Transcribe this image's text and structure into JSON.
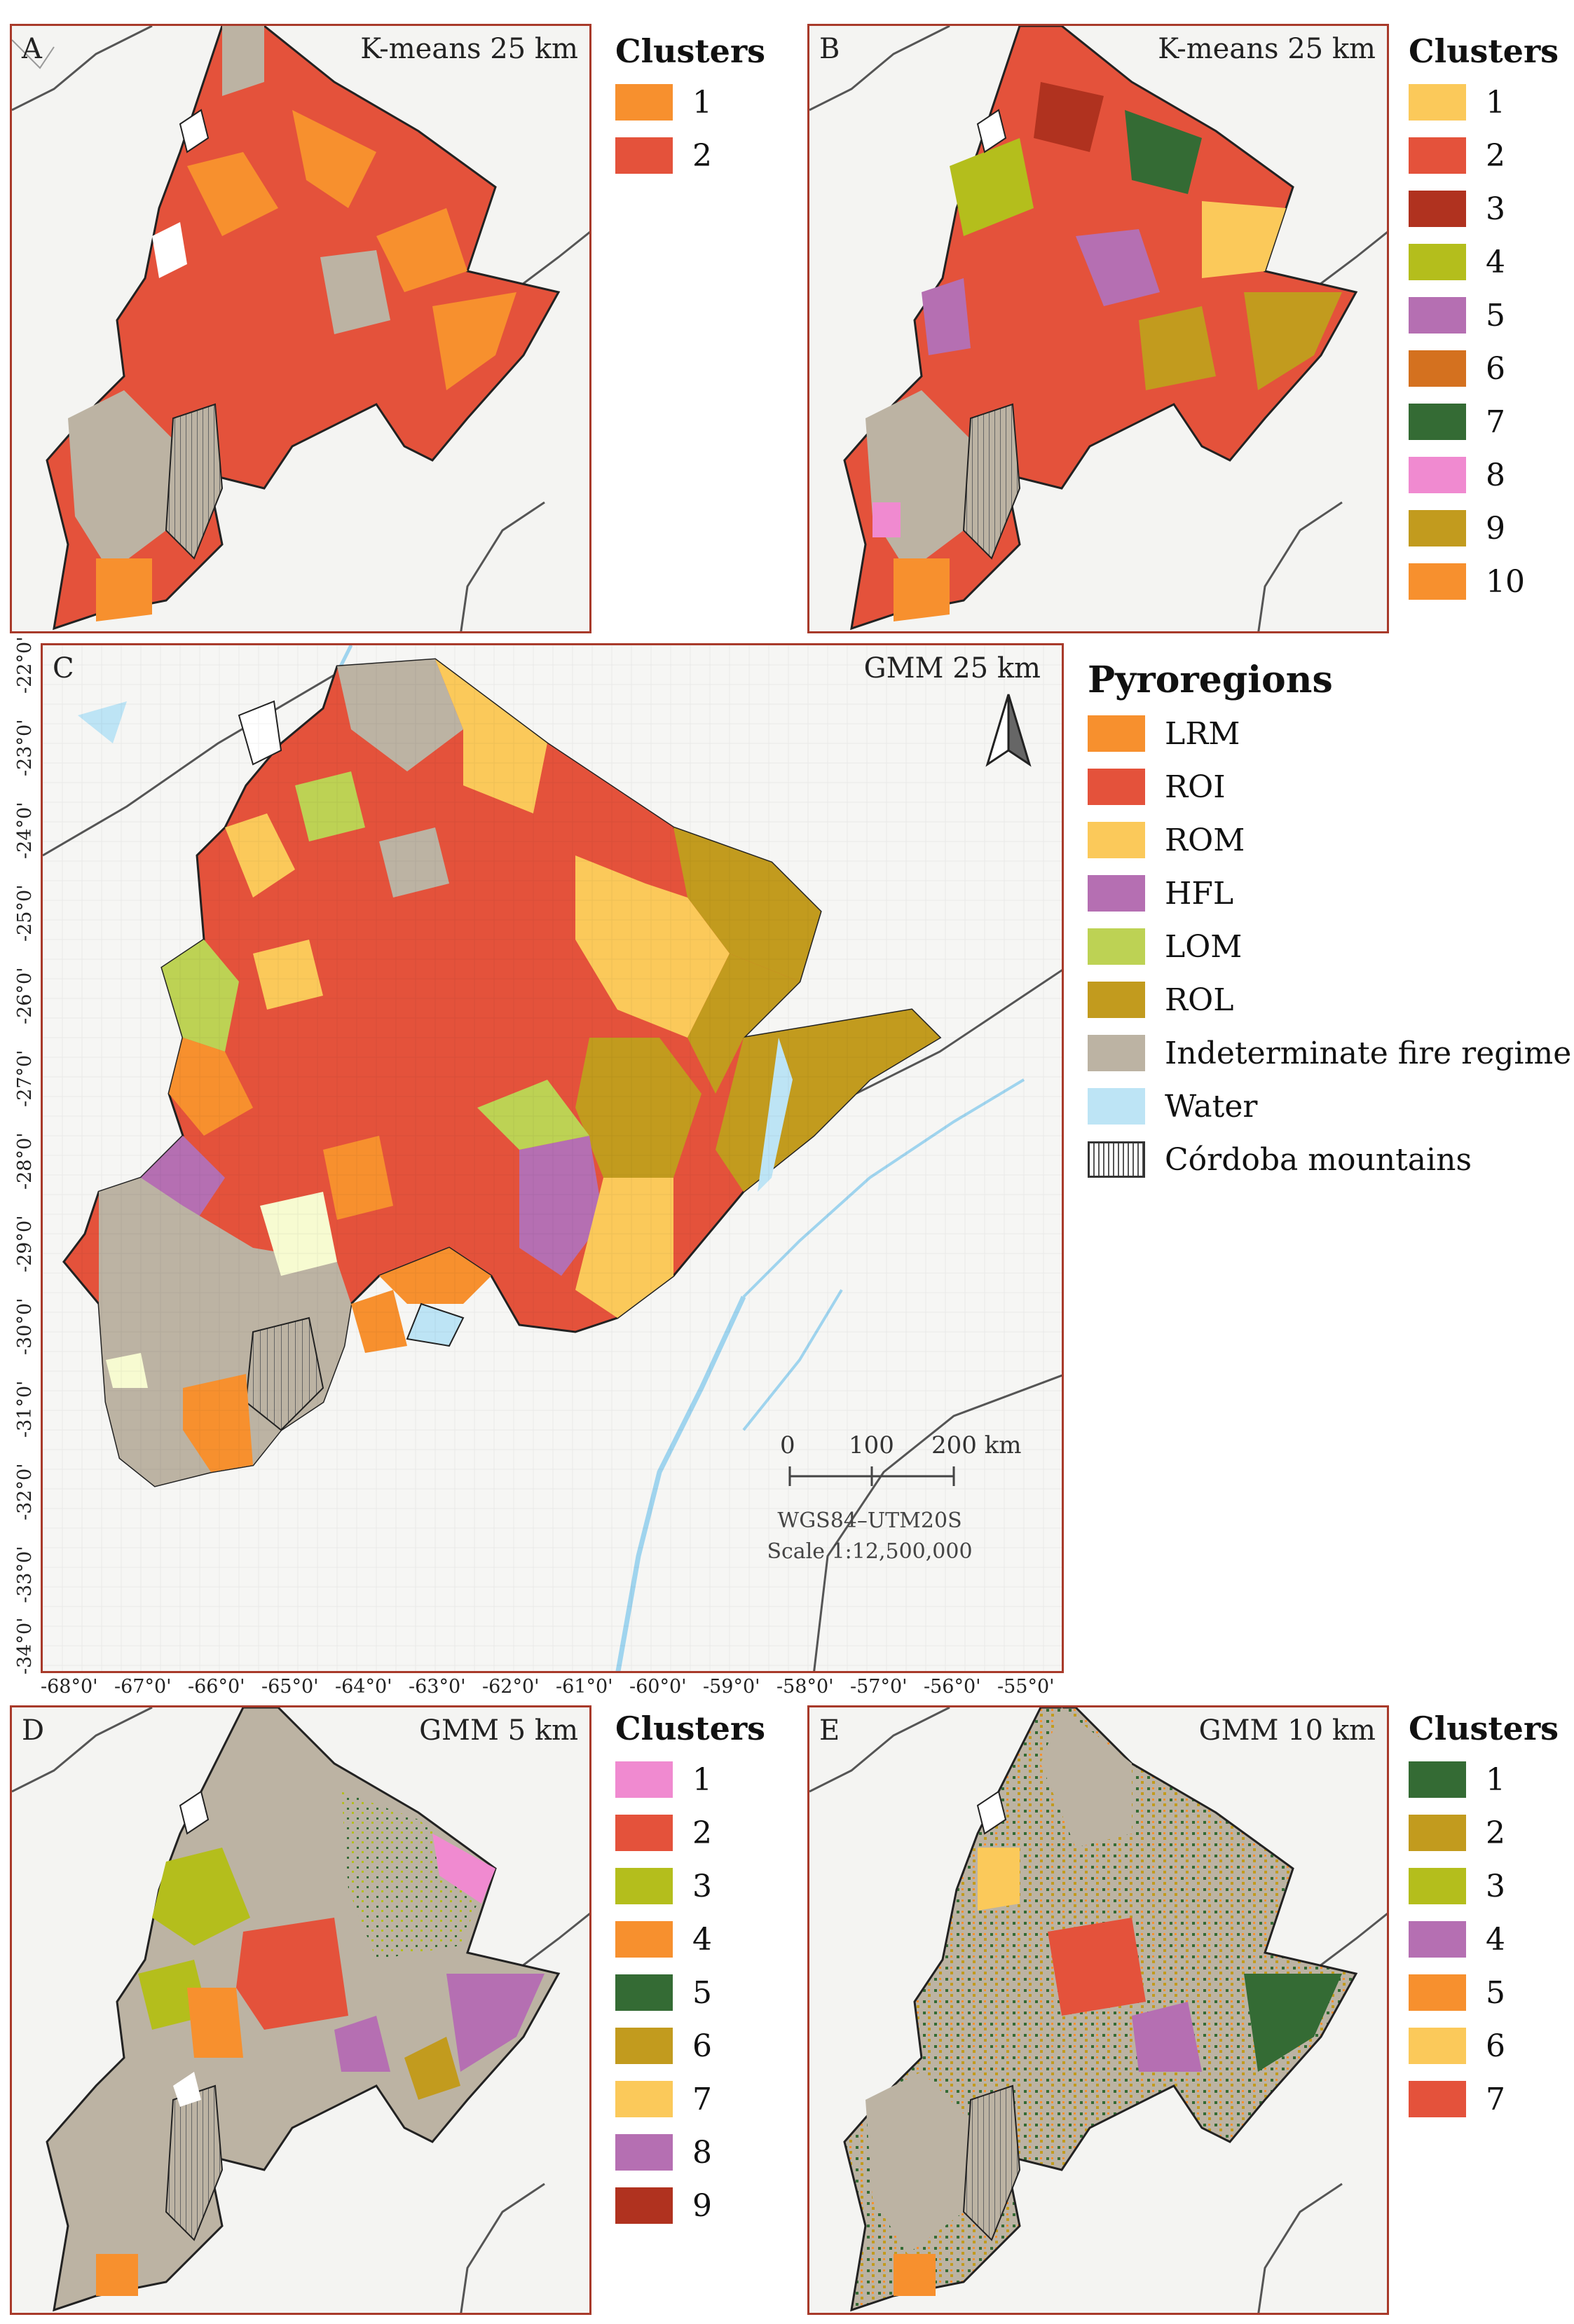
{
  "panels": {
    "A": {
      "letter": "A",
      "title": "K-means 25 km"
    },
    "B": {
      "letter": "B",
      "title": "K-means 25 km"
    },
    "C": {
      "letter": "C",
      "title": "GMM 25 km"
    },
    "D": {
      "letter": "D",
      "title": "GMM 5 km"
    },
    "E": {
      "letter": "E",
      "title": "GMM 10 km"
    }
  },
  "legends": {
    "A": {
      "title": "Clusters",
      "items": [
        {
          "label": "1",
          "color": "#f7902e"
        },
        {
          "label": "2",
          "color": "#e4523b"
        }
      ]
    },
    "B": {
      "title": "Clusters",
      "items": [
        {
          "label": "1",
          "color": "#fbc95a"
        },
        {
          "label": "2",
          "color": "#e4523b"
        },
        {
          "label": "3",
          "color": "#b0321f"
        },
        {
          "label": "4",
          "color": "#b4be1c"
        },
        {
          "label": "5",
          "color": "#b56fb2"
        },
        {
          "label": "6",
          "color": "#d4711f"
        },
        {
          "label": "7",
          "color": "#346b34"
        },
        {
          "label": "8",
          "color": "#f08ad0"
        },
        {
          "label": "9",
          "color": "#c29b1e"
        },
        {
          "label": "10",
          "color": "#f7902e"
        }
      ]
    },
    "C": {
      "title": "Pyroregions",
      "items": [
        {
          "label": "LRM",
          "color": "#f7902e"
        },
        {
          "label": "ROI",
          "color": "#e4523b"
        },
        {
          "label": "ROM",
          "color": "#fbc95a"
        },
        {
          "label": "HFL",
          "color": "#b56fb2"
        },
        {
          "label": "LOM",
          "color": "#bdd254"
        },
        {
          "label": "ROL",
          "color": "#c29b1e"
        },
        {
          "label": "Indeterminate fire regime",
          "color": "#bcb3a3"
        },
        {
          "label": "Water",
          "color": "#bde4f5"
        },
        {
          "label": "Córdoba mountains",
          "color": "hatch"
        }
      ]
    },
    "D": {
      "title": "Clusters",
      "items": [
        {
          "label": "1",
          "color": "#f08ad0"
        },
        {
          "label": "2",
          "color": "#e4523b"
        },
        {
          "label": "3",
          "color": "#b4be1c"
        },
        {
          "label": "4",
          "color": "#f7902e"
        },
        {
          "label": "5",
          "color": "#346b34"
        },
        {
          "label": "6",
          "color": "#c29b1e"
        },
        {
          "label": "7",
          "color": "#fbc95a"
        },
        {
          "label": "8",
          "color": "#b56fb2"
        },
        {
          "label": "9",
          "color": "#b0321f"
        }
      ]
    },
    "E": {
      "title": "Clusters",
      "items": [
        {
          "label": "1",
          "color": "#346b34"
        },
        {
          "label": "2",
          "color": "#c29b1e"
        },
        {
          "label": "3",
          "color": "#b4be1c"
        },
        {
          "label": "4",
          "color": "#b56fb2"
        },
        {
          "label": "5",
          "color": "#f7902e"
        },
        {
          "label": "6",
          "color": "#fbc95a"
        },
        {
          "label": "7",
          "color": "#e4523b"
        }
      ]
    }
  },
  "axes": {
    "lat": [
      "-22°0'",
      "-23°0'",
      "-24°0'",
      "-25°0'",
      "-26°0'",
      "-27°0'",
      "-28°0'",
      "-29°0'",
      "-30°0'",
      "-31°0'",
      "-32°0'",
      "-33°0'",
      "-34°0'"
    ],
    "lon": [
      "-68°0'",
      "-67°0'",
      "-66°0'",
      "-65°0'",
      "-64°0'",
      "-63°0'",
      "-62°0'",
      "-61°0'",
      "-60°0'",
      "-59°0'",
      "-58°0'",
      "-57°0'",
      "-56°0'",
      "-55°0'"
    ]
  },
  "scale": {
    "ticks": [
      "0",
      "100",
      "200 km"
    ],
    "projection": "WGS84–UTM20S",
    "scale_text": "Scale 1:12,500,000"
  },
  "north_arrow": "north-arrow-icon"
}
